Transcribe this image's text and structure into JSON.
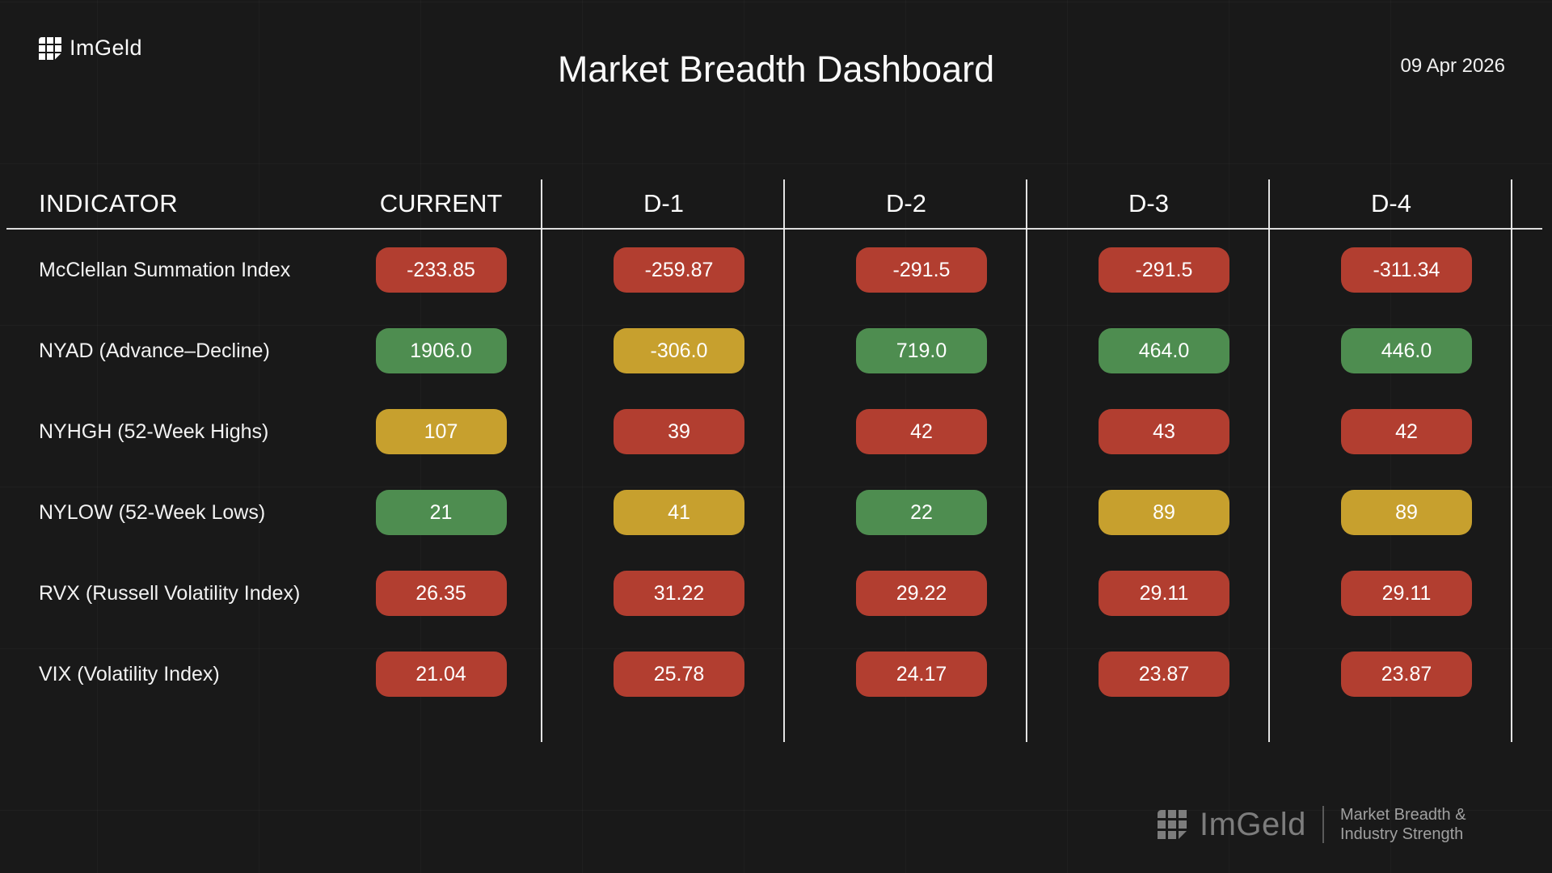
{
  "header": {
    "logo_text": "ImGeld",
    "title": "Market Breadth Dashboard",
    "date": "09 Apr 2026"
  },
  "table": {
    "columns": [
      "INDICATOR",
      "CURRENT",
      "D-1",
      "D-2",
      "D-3",
      "D-4"
    ],
    "rows": [
      {
        "label": "McClellan Summation Index",
        "values": [
          {
            "text": "-233.85",
            "status": "red"
          },
          {
            "text": "-259.87",
            "status": "red"
          },
          {
            "text": "-291.5",
            "status": "red"
          },
          {
            "text": "-291.5",
            "status": "red"
          },
          {
            "text": "-311.34",
            "status": "red"
          }
        ]
      },
      {
        "label": "NYAD (Advance–Decline)",
        "values": [
          {
            "text": "1906.0",
            "status": "green"
          },
          {
            "text": "-306.0",
            "status": "yellow"
          },
          {
            "text": "719.0",
            "status": "green"
          },
          {
            "text": "464.0",
            "status": "green"
          },
          {
            "text": "446.0",
            "status": "green"
          }
        ]
      },
      {
        "label": "NYHGH (52-Week Highs)",
        "values": [
          {
            "text": "107",
            "status": "yellow"
          },
          {
            "text": "39",
            "status": "red"
          },
          {
            "text": "42",
            "status": "red"
          },
          {
            "text": "43",
            "status": "red"
          },
          {
            "text": "42",
            "status": "red"
          }
        ]
      },
      {
        "label": "NYLOW (52-Week Lows)",
        "values": [
          {
            "text": "21",
            "status": "green"
          },
          {
            "text": "41",
            "status": "yellow"
          },
          {
            "text": "22",
            "status": "green"
          },
          {
            "text": "89",
            "status": "yellow"
          },
          {
            "text": "89",
            "status": "yellow"
          }
        ]
      },
      {
        "label": "RVX (Russell Volatility Index)",
        "values": [
          {
            "text": "26.35",
            "status": "red"
          },
          {
            "text": "31.22",
            "status": "red"
          },
          {
            "text": "29.22",
            "status": "red"
          },
          {
            "text": "29.11",
            "status": "red"
          },
          {
            "text": "29.11",
            "status": "red"
          }
        ]
      },
      {
        "label": "VIX (Volatility Index)",
        "values": [
          {
            "text": "21.04",
            "status": "red"
          },
          {
            "text": "25.78",
            "status": "red"
          },
          {
            "text": "24.17",
            "status": "red"
          },
          {
            "text": "23.87",
            "status": "red"
          },
          {
            "text": "23.87",
            "status": "red"
          }
        ]
      }
    ]
  },
  "footer": {
    "logo_text": "ImGeld",
    "tagline_line1": "Market Breadth &",
    "tagline_line2": "Industry Strength"
  },
  "colors": {
    "red": "#b23e30",
    "green": "#4e8d50",
    "yellow": "#c7a02e"
  }
}
